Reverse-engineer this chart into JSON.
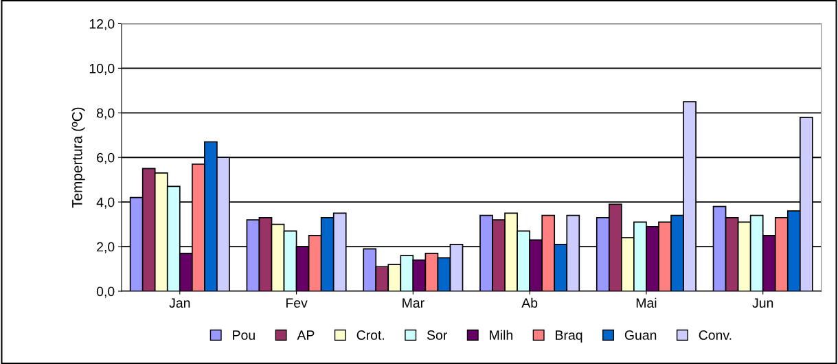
{
  "chart_data": {
    "type": "bar",
    "ylabel": "Tempertura (ºC)",
    "categories": [
      "Jan",
      "Fev",
      "Mar",
      "Ab",
      "Mai",
      "Jun"
    ],
    "series": [
      {
        "name": "Pou",
        "color": "#9999ff",
        "values": [
          4.2,
          3.2,
          1.9,
          3.4,
          3.3,
          3.8
        ]
      },
      {
        "name": "AP",
        "color": "#993366",
        "values": [
          5.5,
          3.3,
          1.1,
          3.2,
          3.9,
          3.3
        ]
      },
      {
        "name": "Crot.",
        "color": "#ffffcc",
        "values": [
          5.3,
          3.0,
          1.2,
          3.5,
          2.4,
          3.1
        ]
      },
      {
        "name": "Sor",
        "color": "#ccffff",
        "values": [
          4.7,
          2.7,
          1.6,
          2.7,
          3.1,
          3.4
        ]
      },
      {
        "name": "Milh",
        "color": "#660066",
        "values": [
          1.7,
          2.0,
          1.4,
          2.3,
          2.9,
          2.5
        ]
      },
      {
        "name": "Braq",
        "color": "#ff8080",
        "values": [
          5.7,
          2.5,
          1.7,
          3.4,
          3.1,
          3.3
        ]
      },
      {
        "name": "Guan",
        "color": "#0066cc",
        "values": [
          6.7,
          3.3,
          1.5,
          2.1,
          3.4,
          3.6
        ]
      },
      {
        "name": "Conv.",
        "color": "#ccccff",
        "values": [
          6.0,
          3.5,
          2.1,
          3.4,
          8.5,
          7.8
        ]
      }
    ],
    "ylim": [
      0,
      12
    ],
    "yticks": [
      {
        "value": 0,
        "label": "0,0"
      },
      {
        "value": 2,
        "label": "2,0"
      },
      {
        "value": 4,
        "label": "4,0"
      },
      {
        "value": 6,
        "label": "6,0"
      },
      {
        "value": 8,
        "label": "8,0"
      },
      {
        "value": 10,
        "label": "10,0"
      },
      {
        "value": 12,
        "label": "12,0"
      }
    ],
    "grid": "y",
    "legend": "bottom"
  }
}
